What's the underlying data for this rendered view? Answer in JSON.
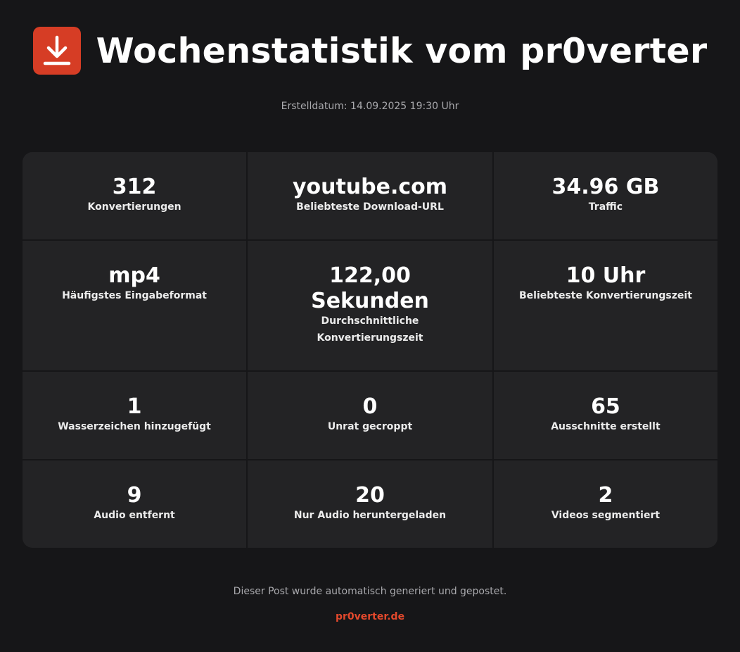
{
  "header": {
    "title": "Wochenstatistik vom pr0verter",
    "logo_icon": "download-icon",
    "logo_color": "#d63d25"
  },
  "created": "Erstelldatum: 14.09.2025 19:30 Uhr",
  "stats": [
    {
      "value": "312",
      "label": "Konvertierungen"
    },
    {
      "value": "youtube.com",
      "label": "Beliebteste Download-URL"
    },
    {
      "value": "34.96 GB",
      "label": "Traffic"
    },
    {
      "value": "mp4",
      "label": "Häufigstes Eingabeformat"
    },
    {
      "value": "122,00 Sekunden",
      "label": "Durchschnittliche Konvertierungszeit"
    },
    {
      "value": "10 Uhr",
      "label": "Beliebteste Konvertierungszeit"
    },
    {
      "value": "1",
      "label": "Wasserzeichen hinzugefügt"
    },
    {
      "value": "0",
      "label": "Unrat gecroppt"
    },
    {
      "value": "65",
      "label": "Ausschnitte erstellt"
    },
    {
      "value": "9",
      "label": "Audio entfernt"
    },
    {
      "value": "20",
      "label": "Nur Audio heruntergeladen"
    },
    {
      "value": "2",
      "label": "Videos segmentiert"
    }
  ],
  "footer": {
    "note": "Dieser Post wurde automatisch generiert und gepostet.",
    "link": "pr0verter.de",
    "accent": "#e2482c"
  }
}
